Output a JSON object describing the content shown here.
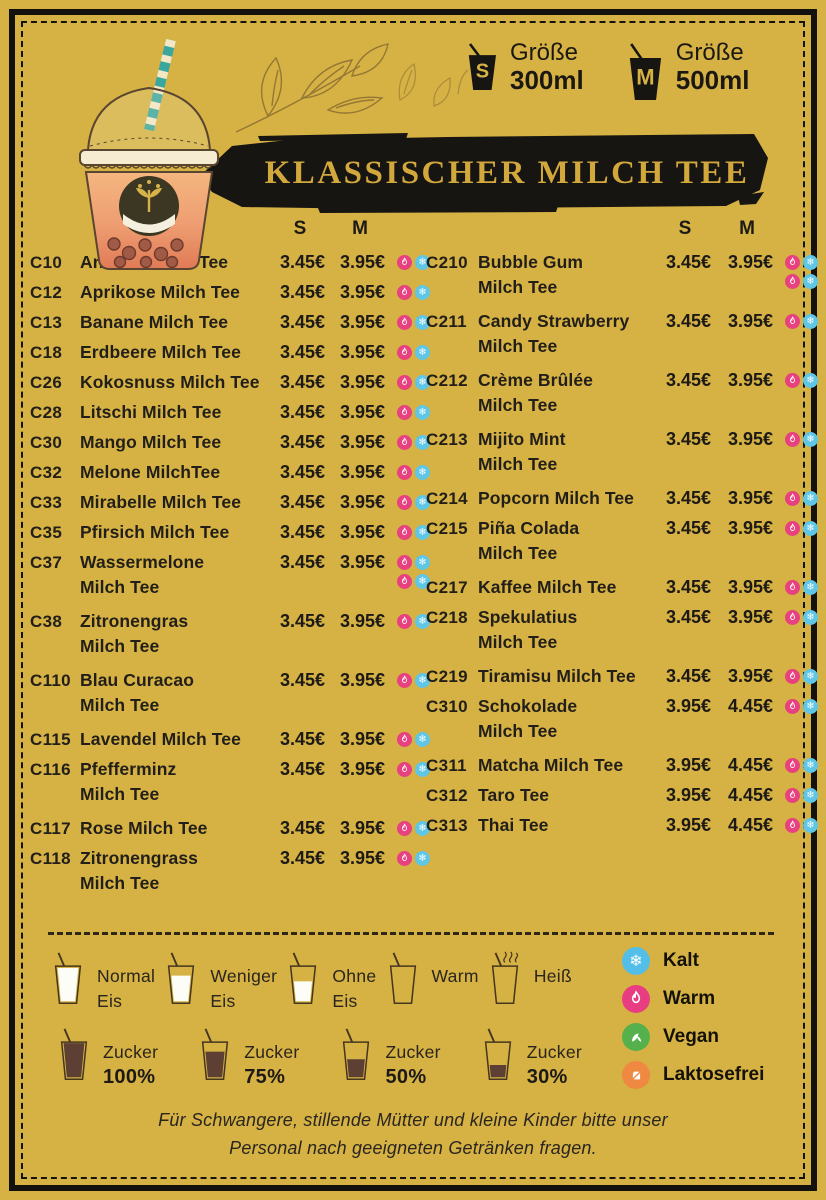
{
  "header": {
    "title": "KLASSISCHER MILCH TEE",
    "size_options": [
      {
        "letter": "S",
        "label": "Größe",
        "volume": "300ml"
      },
      {
        "letter": "M",
        "label": "Größe",
        "volume": "500ml"
      }
    ]
  },
  "price_columns": {
    "s": "S",
    "m": "M"
  },
  "menu": {
    "left": [
      {
        "code": "C10",
        "name": "Ananas Milch Tee",
        "s": "3.45€",
        "m": "3.95€",
        "icons": [
          "warm",
          "kalt"
        ]
      },
      {
        "code": "C12",
        "name": "Aprikose Milch Tee",
        "s": "3.45€",
        "m": "3.95€",
        "icons": [
          "warm",
          "kalt"
        ]
      },
      {
        "code": "C13",
        "name": "Banane Milch Tee",
        "s": "3.45€",
        "m": "3.95€",
        "icons": [
          "warm",
          "kalt"
        ]
      },
      {
        "code": "C18",
        "name": "Erdbeere Milch Tee",
        "s": "3.45€",
        "m": "3.95€",
        "icons": [
          "warm",
          "kalt"
        ]
      },
      {
        "code": "C26",
        "name": "Kokosnuss Milch Tee",
        "s": "3.45€",
        "m": "3.95€",
        "icons": [
          "warm",
          "kalt"
        ]
      },
      {
        "code": "C28",
        "name": "Litschi Milch Tee",
        "s": "3.45€",
        "m": "3.95€",
        "icons": [
          "warm",
          "kalt"
        ]
      },
      {
        "code": "C30",
        "name": "Mango Milch Tee",
        "s": "3.45€",
        "m": "3.95€",
        "icons": [
          "warm",
          "kalt"
        ]
      },
      {
        "code": "C32",
        "name": "Melone MilchTee",
        "s": "3.45€",
        "m": "3.95€",
        "icons": [
          "warm",
          "kalt"
        ]
      },
      {
        "code": "C33",
        "name": "Mirabelle Milch Tee",
        "s": "3.45€",
        "m": "3.95€",
        "icons": [
          "warm",
          "kalt"
        ]
      },
      {
        "code": "C35",
        "name": "Pfirsich Milch Tee",
        "s": "3.45€",
        "m": "3.95€",
        "icons": [
          "warm",
          "kalt"
        ]
      },
      {
        "code": "C37",
        "name": "Wassermelone",
        "name2": "Milch Tee",
        "s": "3.45€",
        "m": "3.95€",
        "icons": [
          "warm",
          "kalt"
        ],
        "extra_icons": true
      },
      {
        "code": "C38",
        "name": "Zitronengras",
        "name2": "Milch Tee",
        "s": "3.45€",
        "m": "3.95€",
        "icons": [
          "warm",
          "kalt"
        ]
      },
      {
        "code": "C110",
        "name": "Blau Curacao",
        "name2": "Milch Tee",
        "s": "3.45€",
        "m": "3.95€",
        "icons": [
          "warm",
          "kalt"
        ]
      },
      {
        "code": "C115",
        "name": "Lavendel Milch Tee",
        "s": "3.45€",
        "m": "3.95€",
        "icons": [
          "warm",
          "kalt"
        ]
      },
      {
        "code": "C116",
        "name": "Pfefferminz",
        "name2": "Milch Tee",
        "s": "3.45€",
        "m": "3.95€",
        "icons": [
          "warm",
          "kalt"
        ]
      },
      {
        "code": "C117",
        "name": "Rose Milch Tee",
        "s": "3.45€",
        "m": "3.95€",
        "icons": [
          "warm",
          "kalt"
        ]
      },
      {
        "code": "C118",
        "name": "Zitronengrass",
        "name2": "Milch Tee",
        "s": "3.45€",
        "m": "3.95€",
        "icons": [
          "warm",
          "kalt"
        ]
      }
    ],
    "right": [
      {
        "code": "C210",
        "name": "Bubble Gum",
        "name2": "Milch Tee",
        "s": "3.45€",
        "m": "3.95€",
        "icons": [
          "warm",
          "kalt"
        ],
        "extra_icons": true
      },
      {
        "code": "C211",
        "name": "Candy Strawberry",
        "name2": "Milch Tee",
        "s": "3.45€",
        "m": "3.95€",
        "icons": [
          "warm",
          "kalt"
        ]
      },
      {
        "code": "C212",
        "name": "Crème Brûlée",
        "name2": "Milch Tee",
        "s": "3.45€",
        "m": "3.95€",
        "icons": [
          "warm",
          "kalt"
        ]
      },
      {
        "code": "C213",
        "name": "Mijito Mint",
        "name2": "Milch Tee",
        "s": "3.45€",
        "m": "3.95€",
        "icons": [
          "warm",
          "kalt"
        ]
      },
      {
        "code": "C214",
        "name": "Popcorn Milch Tee",
        "s": "3.45€",
        "m": "3.95€",
        "icons": [
          "warm",
          "kalt"
        ]
      },
      {
        "code": "C215",
        "name": "Piña Colada",
        "name2": "Milch Tee",
        "s": "3.45€",
        "m": "3.95€",
        "icons": [
          "warm",
          "kalt"
        ]
      },
      {
        "code": "C217",
        "name": "Kaffee Milch Tee",
        "s": "3.45€",
        "m": "3.95€",
        "icons": [
          "warm",
          "kalt"
        ]
      },
      {
        "code": "C218",
        "name": "Spekulatius",
        "name2": "Milch Tee",
        "s": "3.45€",
        "m": "3.95€",
        "icons": [
          "warm",
          "kalt"
        ]
      },
      {
        "code": "C219",
        "name": "Tiramisu Milch Tee",
        "s": "3.45€",
        "m": "3.95€",
        "icons": [
          "warm",
          "kalt"
        ]
      },
      {
        "code": "C310",
        "name": "Schokolade",
        "name2": "Milch Tee",
        "s": "3.95€",
        "m": "4.45€",
        "icons": [
          "warm",
          "kalt"
        ]
      },
      {
        "code": "C311",
        "name": "Matcha Milch Tee",
        "s": "3.95€",
        "m": "4.45€",
        "icons": [
          "warm",
          "kalt"
        ]
      },
      {
        "code": "C312",
        "name": "Taro Tee",
        "s": "3.95€",
        "m": "4.45€",
        "icons": [
          "warm",
          "kalt"
        ]
      },
      {
        "code": "C313",
        "name": "Thai Tee",
        "s": "3.95€",
        "m": "4.45€",
        "icons": [
          "warm",
          "kalt"
        ]
      }
    ]
  },
  "options": {
    "ice": [
      {
        "line1": "Normal",
        "line2": "Eis",
        "fill": "full"
      },
      {
        "line1": "Weniger",
        "line2": "Eis",
        "fill": "less"
      },
      {
        "line1": "Ohne",
        "line2": "Eis",
        "fill": "half"
      },
      {
        "line1": "Warm",
        "line2": "",
        "fill": "none"
      },
      {
        "line1": "Heiß",
        "line2": "",
        "fill": "none",
        "steam": true
      }
    ],
    "sugar": [
      {
        "label": "Zucker",
        "percent": "100%",
        "fill": "p100"
      },
      {
        "label": "Zucker",
        "percent": "75%",
        "fill": "p75"
      },
      {
        "label": "Zucker",
        "percent": "50%",
        "fill": "p50"
      },
      {
        "label": "Zucker",
        "percent": "30%",
        "fill": "p30"
      }
    ]
  },
  "legend": [
    {
      "icon": "snowflake",
      "label": "Kalt",
      "color": "#53bfe8"
    },
    {
      "icon": "flame",
      "label": "Warm",
      "color": "#e83d80"
    },
    {
      "icon": "leaf",
      "label": "Vegan",
      "color": "#56b04c"
    },
    {
      "icon": "milk-crossed",
      "label": "Laktosefrei",
      "color": "#ef8840"
    }
  ],
  "footer": {
    "line1": "Für Schwangere, stillende Mütter und kleine Kinder bitte unser",
    "line2": "Personal nach geeigneten Getränken fragen."
  },
  "colors": {
    "background": "#d5b243",
    "frame": "#14120e",
    "banner": "#171512",
    "title_gold": "#d2a83c",
    "warm_pink": "#e8417f",
    "cold_blue": "#5fc6e6",
    "vegan_green": "#56b04c",
    "lactosefree_orange": "#ef8840",
    "sugar_brown": "#5d4033",
    "ice_white": "#fdfdf8",
    "text": "#221e19"
  }
}
